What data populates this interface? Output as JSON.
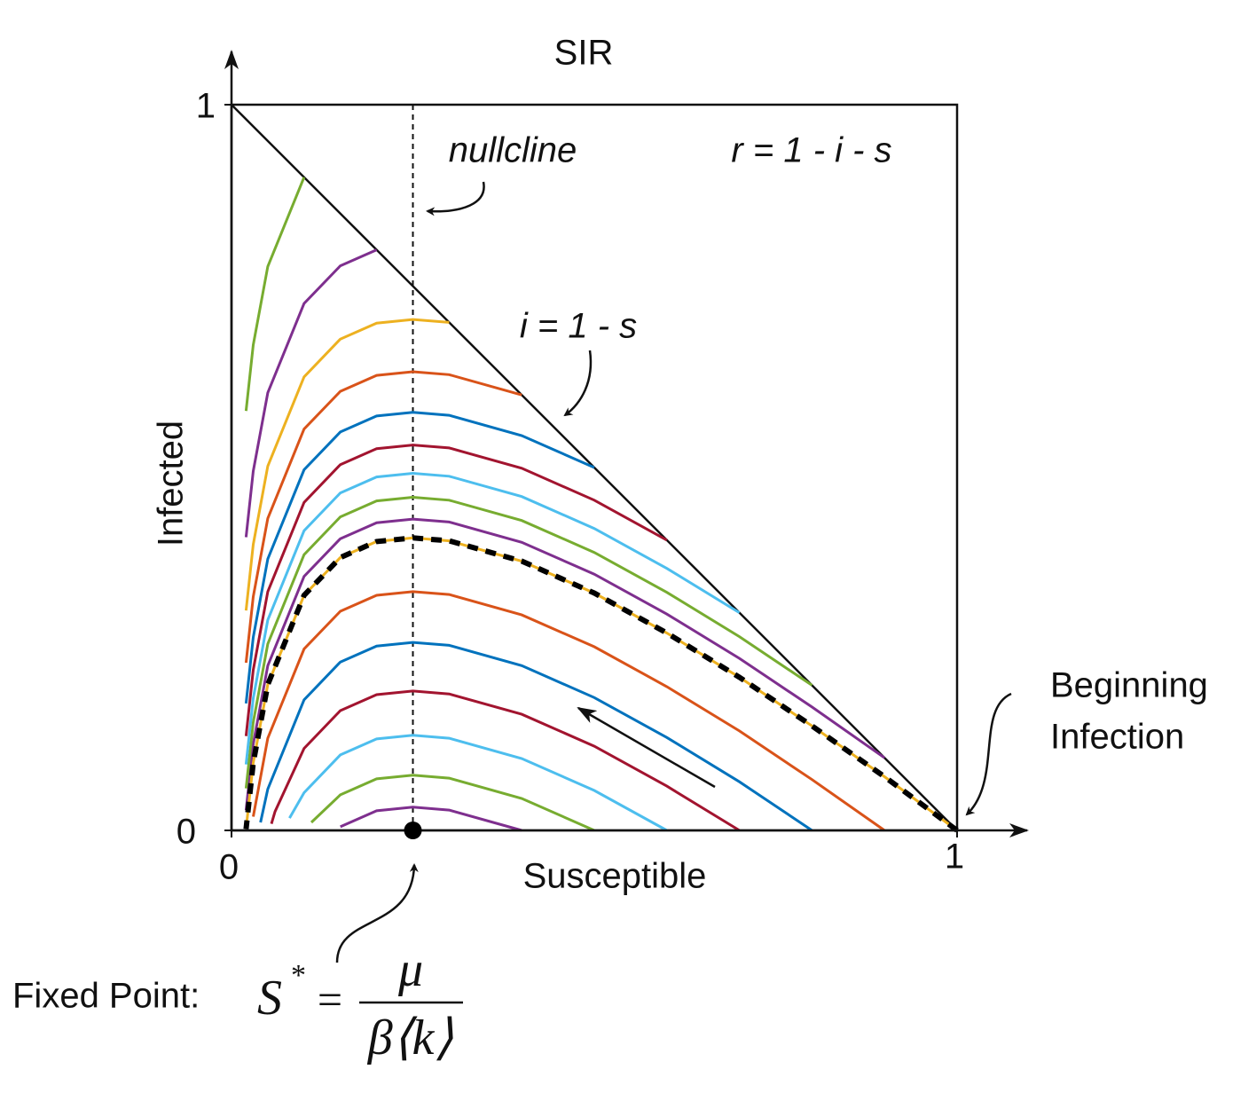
{
  "chart_data": {
    "type": "line",
    "title": "SIR",
    "x_label": "Susceptible",
    "y_label": "Infected",
    "xlim": [
      0,
      1
    ],
    "ylim": [
      0,
      1
    ],
    "xticks": [
      0,
      1
    ],
    "yticks": [
      0,
      1
    ],
    "nullcline": {
      "label": "nullcline",
      "s": 0.25
    },
    "annotations": {
      "r_relation": "r = 1 - i - s",
      "diagonal": "i = 1 - s",
      "start": [
        "Beginning",
        "Infection"
      ]
    },
    "fixed_point": {
      "s": 0.25,
      "i": 0,
      "label": "Fixed Point:",
      "lhs": "S",
      "sup": "*",
      "eq": "=",
      "numerator": "μ",
      "denominator": "β⟨k⟩"
    },
    "series": [
      {
        "color": "#7E2F8E",
        "x": [
          0.9,
          0.8,
          0.7,
          0.6,
          0.5,
          0.4,
          0.3,
          0.25,
          0.2,
          0.15,
          0.1,
          0.05,
          0.03,
          0.02
        ],
        "values": [
          0.1,
          0.17,
          0.237,
          0.298,
          0.353,
          0.397,
          0.425,
          0.429,
          0.424,
          0.402,
          0.35,
          0.227,
          0.119,
          0.028
        ]
      },
      {
        "color": "#77AC30",
        "x": [
          0.8,
          0.7,
          0.6,
          0.5,
          0.4,
          0.3,
          0.25,
          0.2,
          0.15,
          0.1,
          0.05,
          0.03,
          0.02
        ],
        "values": [
          0.2,
          0.267,
          0.328,
          0.383,
          0.427,
          0.455,
          0.459,
          0.454,
          0.432,
          0.38,
          0.257,
          0.149,
          0.058
        ]
      },
      {
        "color": "#4DBEEE",
        "x": [
          0.7,
          0.6,
          0.5,
          0.4,
          0.3,
          0.25,
          0.2,
          0.15,
          0.1,
          0.05,
          0.03,
          0.02
        ],
        "values": [
          0.3,
          0.361,
          0.416,
          0.46,
          0.488,
          0.492,
          0.487,
          0.465,
          0.413,
          0.29,
          0.182,
          0.091
        ]
      },
      {
        "color": "#A2142F",
        "x": [
          0.6,
          0.5,
          0.4,
          0.3,
          0.25,
          0.2,
          0.15,
          0.1,
          0.05,
          0.03,
          0.02
        ],
        "values": [
          0.4,
          0.455,
          0.499,
          0.527,
          0.531,
          0.526,
          0.504,
          0.452,
          0.329,
          0.221,
          0.13
        ]
      },
      {
        "color": "#0072BD",
        "x": [
          0.5,
          0.4,
          0.3,
          0.25,
          0.2,
          0.15,
          0.1,
          0.05,
          0.03,
          0.02
        ],
        "values": [
          0.5,
          0.544,
          0.572,
          0.576,
          0.571,
          0.549,
          0.497,
          0.374,
          0.266,
          0.175
        ]
      },
      {
        "color": "#D95319",
        "x": [
          0.4,
          0.3,
          0.25,
          0.2,
          0.15,
          0.1,
          0.05,
          0.03,
          0.02
        ],
        "values": [
          0.6,
          0.628,
          0.632,
          0.627,
          0.605,
          0.553,
          0.43,
          0.322,
          0.231
        ]
      },
      {
        "color": "#EDB120",
        "x": [
          0.3,
          0.25,
          0.2,
          0.15,
          0.1,
          0.05,
          0.03,
          0.02
        ],
        "values": [
          0.7,
          0.704,
          0.699,
          0.677,
          0.625,
          0.502,
          0.394,
          0.303
        ]
      },
      {
        "color": "#7E2F8E",
        "x": [
          0.2,
          0.15,
          0.1,
          0.05,
          0.03,
          0.02
        ],
        "values": [
          0.8,
          0.778,
          0.726,
          0.603,
          0.495,
          0.404
        ]
      },
      {
        "color": "#77AC30",
        "x": [
          0.1,
          0.05,
          0.03,
          0.02
        ],
        "values": [
          0.9,
          0.777,
          0.669,
          0.578
        ]
      },
      {
        "color": "#7E2F8E",
        "x": [
          0.4,
          0.3,
          0.25,
          0.2,
          0.15
        ],
        "values": [
          0,
          0.028,
          0.032,
          0.027,
          0.005
        ]
      },
      {
        "color": "#77AC30",
        "x": [
          0.5,
          0.4,
          0.3,
          0.25,
          0.2,
          0.15,
          0.11
        ],
        "values": [
          0,
          0.044,
          0.072,
          0.076,
          0.071,
          0.049,
          0.011
        ]
      },
      {
        "color": "#4DBEEE",
        "x": [
          0.6,
          0.5,
          0.4,
          0.3,
          0.25,
          0.2,
          0.15,
          0.1,
          0.08
        ],
        "values": [
          0,
          0.055,
          0.099,
          0.127,
          0.131,
          0.126,
          0.104,
          0.052,
          0.017
        ]
      },
      {
        "color": "#A2142F",
        "x": [
          0.7,
          0.6,
          0.5,
          0.4,
          0.3,
          0.25,
          0.2,
          0.15,
          0.1,
          0.06,
          0.055
        ],
        "values": [
          0,
          0.061,
          0.116,
          0.16,
          0.188,
          0.192,
          0.187,
          0.165,
          0.113,
          0.026,
          0.009
        ]
      },
      {
        "color": "#0072BD",
        "x": [
          0.8,
          0.7,
          0.6,
          0.5,
          0.4,
          0.3,
          0.25,
          0.2,
          0.15,
          0.1,
          0.05,
          0.04
        ],
        "values": [
          0,
          0.067,
          0.128,
          0.183,
          0.227,
          0.255,
          0.259,
          0.254,
          0.232,
          0.18,
          0.057,
          0.011
        ]
      },
      {
        "color": "#D95319",
        "x": [
          0.9,
          0.8,
          0.7,
          0.6,
          0.5,
          0.4,
          0.3,
          0.25,
          0.2,
          0.15,
          0.1,
          0.05,
          0.03
        ],
        "values": [
          0,
          0.07,
          0.137,
          0.198,
          0.253,
          0.297,
          0.325,
          0.329,
          0.324,
          0.302,
          0.25,
          0.127,
          0.019
        ]
      },
      {
        "color": "#EDB120",
        "dashed": true,
        "x": [
          1,
          0.9,
          0.8,
          0.7,
          0.6,
          0.5,
          0.4,
          0.3,
          0.25,
          0.2,
          0.15,
          0.1,
          0.05,
          0.03,
          0.02
        ],
        "values": [
          0,
          0.074,
          0.144,
          0.211,
          0.272,
          0.327,
          0.371,
          0.399,
          0.403,
          0.398,
          0.376,
          0.324,
          0.201,
          0.093,
          0.002
        ]
      }
    ]
  }
}
